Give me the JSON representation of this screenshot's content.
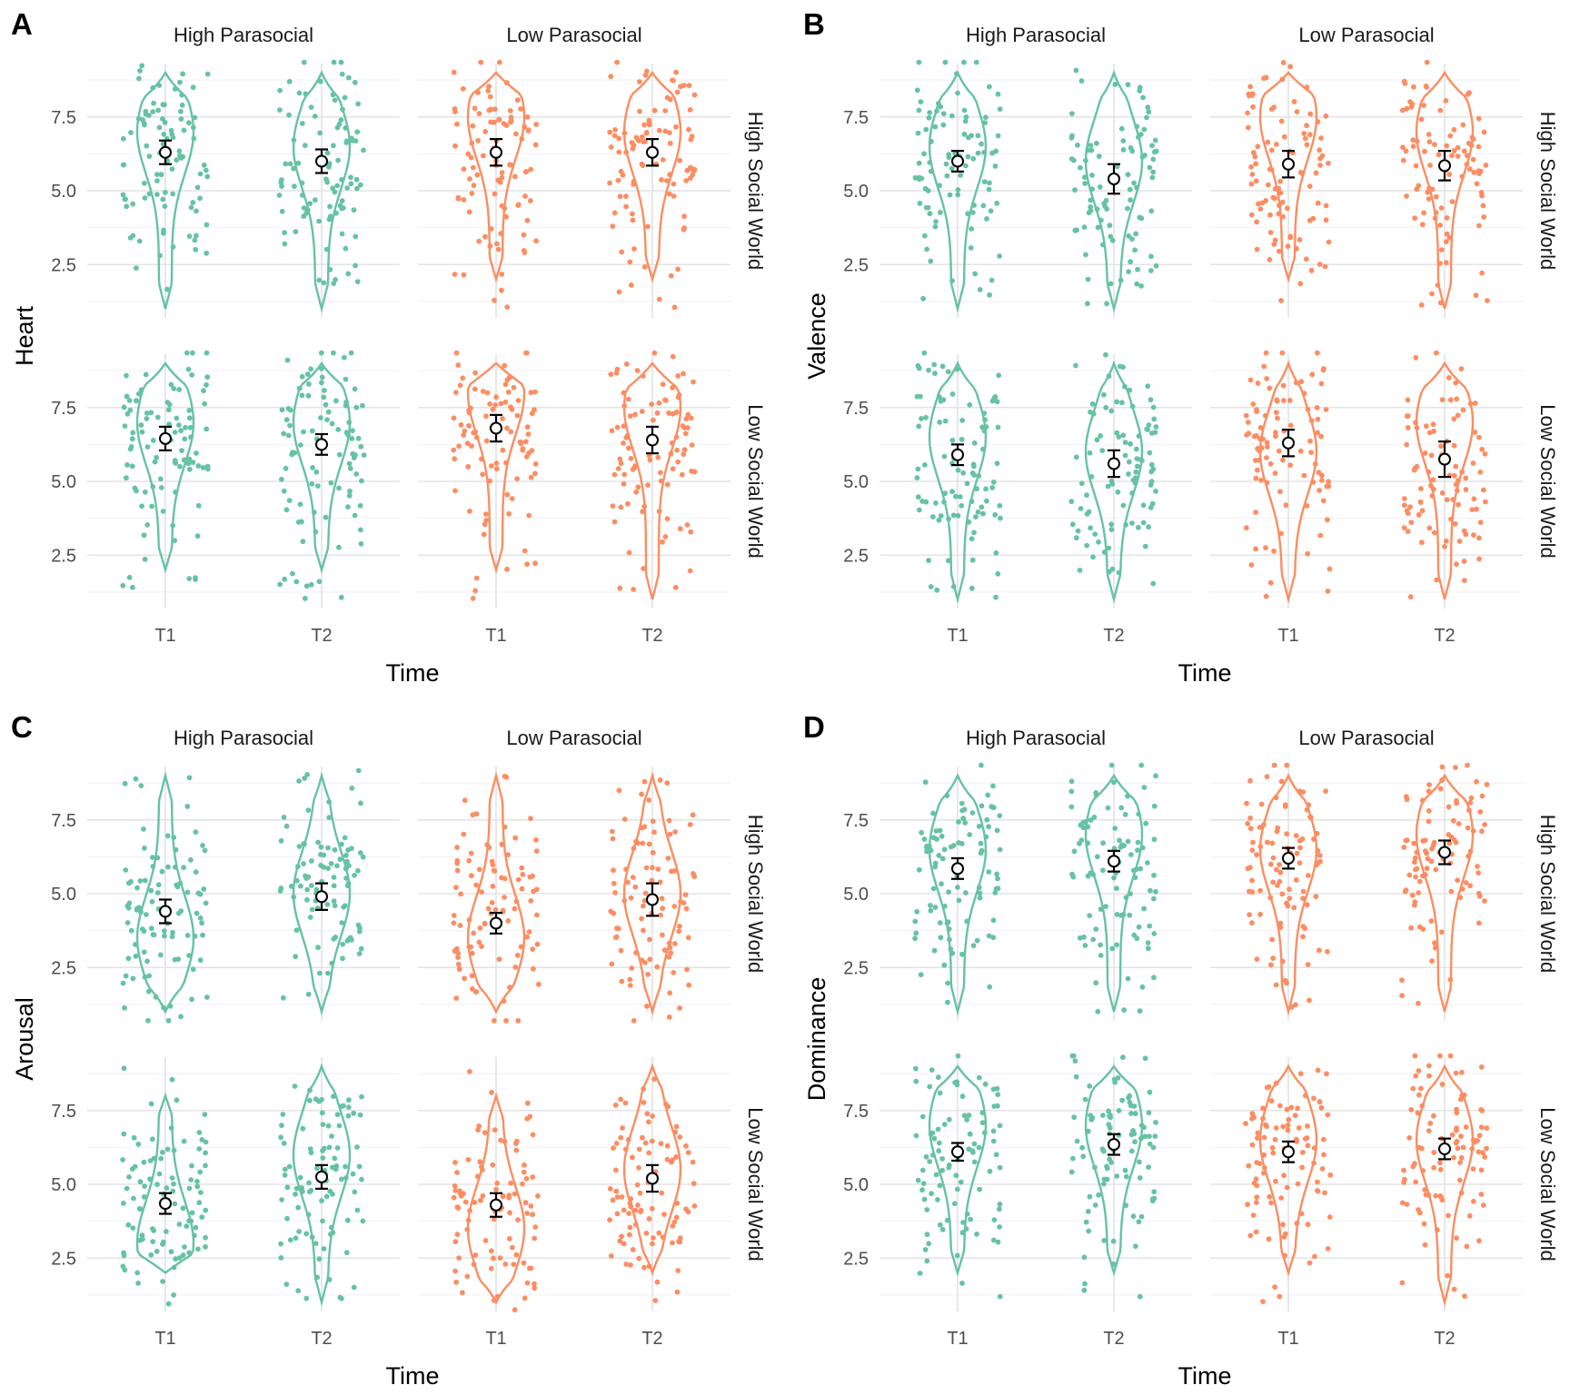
{
  "colors": {
    "high_parasocial": "#66c2a5",
    "low_parasocial": "#fc8d62",
    "mean_marker": "#000000"
  },
  "chart_data": [
    {
      "type": "violin",
      "tag": "A",
      "ylabel": "Heart",
      "xlabel": "Time",
      "x_categories": [
        "T1",
        "T2"
      ],
      "column_facets": [
        "High Parasocial",
        "Low Parasocial"
      ],
      "row_facets": [
        "High Social World",
        "Low Social World"
      ],
      "y_ticks": [
        "2.5",
        "5.0",
        "7.5"
      ],
      "ylim": [
        1,
        9
      ],
      "grid": true,
      "panels": [
        {
          "row": 0,
          "col": 0,
          "means": [
            6.3,
            6.0
          ],
          "ci": [
            0.4,
            0.4
          ],
          "vmin": [
            1,
            1
          ],
          "vmax": [
            9,
            9
          ],
          "mode": [
            7.0,
            6.5
          ]
        },
        {
          "row": 0,
          "col": 1,
          "means": [
            6.3,
            6.3
          ],
          "ci": [
            0.45,
            0.45
          ],
          "vmin": [
            2,
            2
          ],
          "vmax": [
            9,
            9
          ],
          "mode": [
            7.5,
            7.0
          ]
        },
        {
          "row": 1,
          "col": 0,
          "means": [
            6.45,
            6.25
          ],
          "ci": [
            0.4,
            0.35
          ],
          "vmin": [
            2,
            2
          ],
          "vmax": [
            9,
            9
          ],
          "mode": [
            7.0,
            7.0
          ]
        },
        {
          "row": 1,
          "col": 1,
          "means": [
            6.8,
            6.4
          ],
          "ci": [
            0.45,
            0.45
          ],
          "vmin": [
            2,
            1
          ],
          "vmax": [
            9,
            9
          ],
          "mode": [
            8.0,
            7.5
          ]
        }
      ]
    },
    {
      "type": "violin",
      "tag": "B",
      "ylabel": "Valence",
      "xlabel": "Time",
      "x_categories": [
        "T1",
        "T2"
      ],
      "column_facets": [
        "High Parasocial",
        "Low Parasocial"
      ],
      "row_facets": [
        "High Social World",
        "Low Social World"
      ],
      "y_ticks": [
        "2.5",
        "5.0",
        "7.5"
      ],
      "ylim": [
        1,
        9
      ],
      "grid": true,
      "panels": [
        {
          "row": 0,
          "col": 0,
          "means": [
            6.0,
            5.4
          ],
          "ci": [
            0.35,
            0.5
          ],
          "vmin": [
            1,
            1
          ],
          "vmax": [
            9,
            9
          ],
          "mode": [
            6.5,
            6.0
          ]
        },
        {
          "row": 0,
          "col": 1,
          "means": [
            5.9,
            5.85
          ],
          "ci": [
            0.45,
            0.5
          ],
          "vmin": [
            2,
            1
          ],
          "vmax": [
            9,
            9
          ],
          "mode": [
            7.5,
            7.0
          ]
        },
        {
          "row": 1,
          "col": 0,
          "means": [
            5.9,
            5.6
          ],
          "ci": [
            0.35,
            0.45
          ],
          "vmin": [
            1,
            1
          ],
          "vmax": [
            9,
            9
          ],
          "mode": [
            6.5,
            6.0
          ]
        },
        {
          "row": 1,
          "col": 1,
          "means": [
            6.3,
            5.75
          ],
          "ci": [
            0.45,
            0.6
          ],
          "vmin": [
            1,
            1
          ],
          "vmax": [
            9,
            9
          ],
          "mode": [
            6.0,
            7.0
          ]
        }
      ]
    },
    {
      "type": "violin",
      "tag": "C",
      "ylabel": "Arousal",
      "xlabel": "Time",
      "x_categories": [
        "T1",
        "T2"
      ],
      "column_facets": [
        "High Parasocial",
        "Low Parasocial"
      ],
      "row_facets": [
        "High Social World",
        "Low Social World"
      ],
      "y_ticks": [
        "2.5",
        "5.0",
        "7.5"
      ],
      "ylim": [
        1,
        9
      ],
      "grid": true,
      "panels": [
        {
          "row": 0,
          "col": 0,
          "means": [
            4.4,
            4.9
          ],
          "ci": [
            0.4,
            0.45
          ],
          "vmin": [
            1,
            1
          ],
          "vmax": [
            9,
            9
          ],
          "mode": [
            3.5,
            5.0
          ]
        },
        {
          "row": 0,
          "col": 1,
          "means": [
            4.0,
            4.8
          ],
          "ci": [
            0.35,
            0.55
          ],
          "vmin": [
            1,
            1
          ],
          "vmax": [
            9,
            9
          ],
          "mode": [
            3.5,
            5.0
          ]
        },
        {
          "row": 1,
          "col": 0,
          "means": [
            4.35,
            5.25
          ],
          "ci": [
            0.35,
            0.4
          ],
          "vmin": [
            2,
            1
          ],
          "vmax": [
            8,
            9
          ],
          "mode": [
            3.0,
            6.0
          ]
        },
        {
          "row": 1,
          "col": 1,
          "means": [
            4.3,
            5.2
          ],
          "ci": [
            0.4,
            0.45
          ],
          "vmin": [
            1,
            2
          ],
          "vmax": [
            8,
            9
          ],
          "mode": [
            3.5,
            5.5
          ]
        }
      ]
    },
    {
      "type": "violin",
      "tag": "D",
      "ylabel": "Dominance",
      "xlabel": "Time",
      "x_categories": [
        "T1",
        "T2"
      ],
      "column_facets": [
        "High Parasocial",
        "Low Parasocial"
      ],
      "row_facets": [
        "High Social World",
        "Low Social World"
      ],
      "y_ticks": [
        "2.5",
        "5.0",
        "7.5"
      ],
      "ylim": [
        1,
        9
      ],
      "grid": true,
      "panels": [
        {
          "row": 0,
          "col": 0,
          "means": [
            5.85,
            6.1
          ],
          "ci": [
            0.35,
            0.35
          ],
          "vmin": [
            1,
            1
          ],
          "vmax": [
            9,
            9
          ],
          "mode": [
            6.5,
            7.0
          ]
        },
        {
          "row": 0,
          "col": 1,
          "means": [
            6.2,
            6.4
          ],
          "ci": [
            0.35,
            0.4
          ],
          "vmin": [
            1,
            1
          ],
          "vmax": [
            9,
            9
          ],
          "mode": [
            6.5,
            7.0
          ]
        },
        {
          "row": 1,
          "col": 0,
          "means": [
            6.1,
            6.35
          ],
          "ci": [
            0.3,
            0.35
          ],
          "vmin": [
            2,
            2
          ],
          "vmax": [
            9,
            9
          ],
          "mode": [
            7.0,
            7.0
          ]
        },
        {
          "row": 1,
          "col": 1,
          "means": [
            6.1,
            6.2
          ],
          "ci": [
            0.35,
            0.35
          ],
          "vmin": [
            2,
            1
          ],
          "vmax": [
            9,
            9
          ],
          "mode": [
            6.5,
            6.5
          ]
        }
      ]
    }
  ]
}
